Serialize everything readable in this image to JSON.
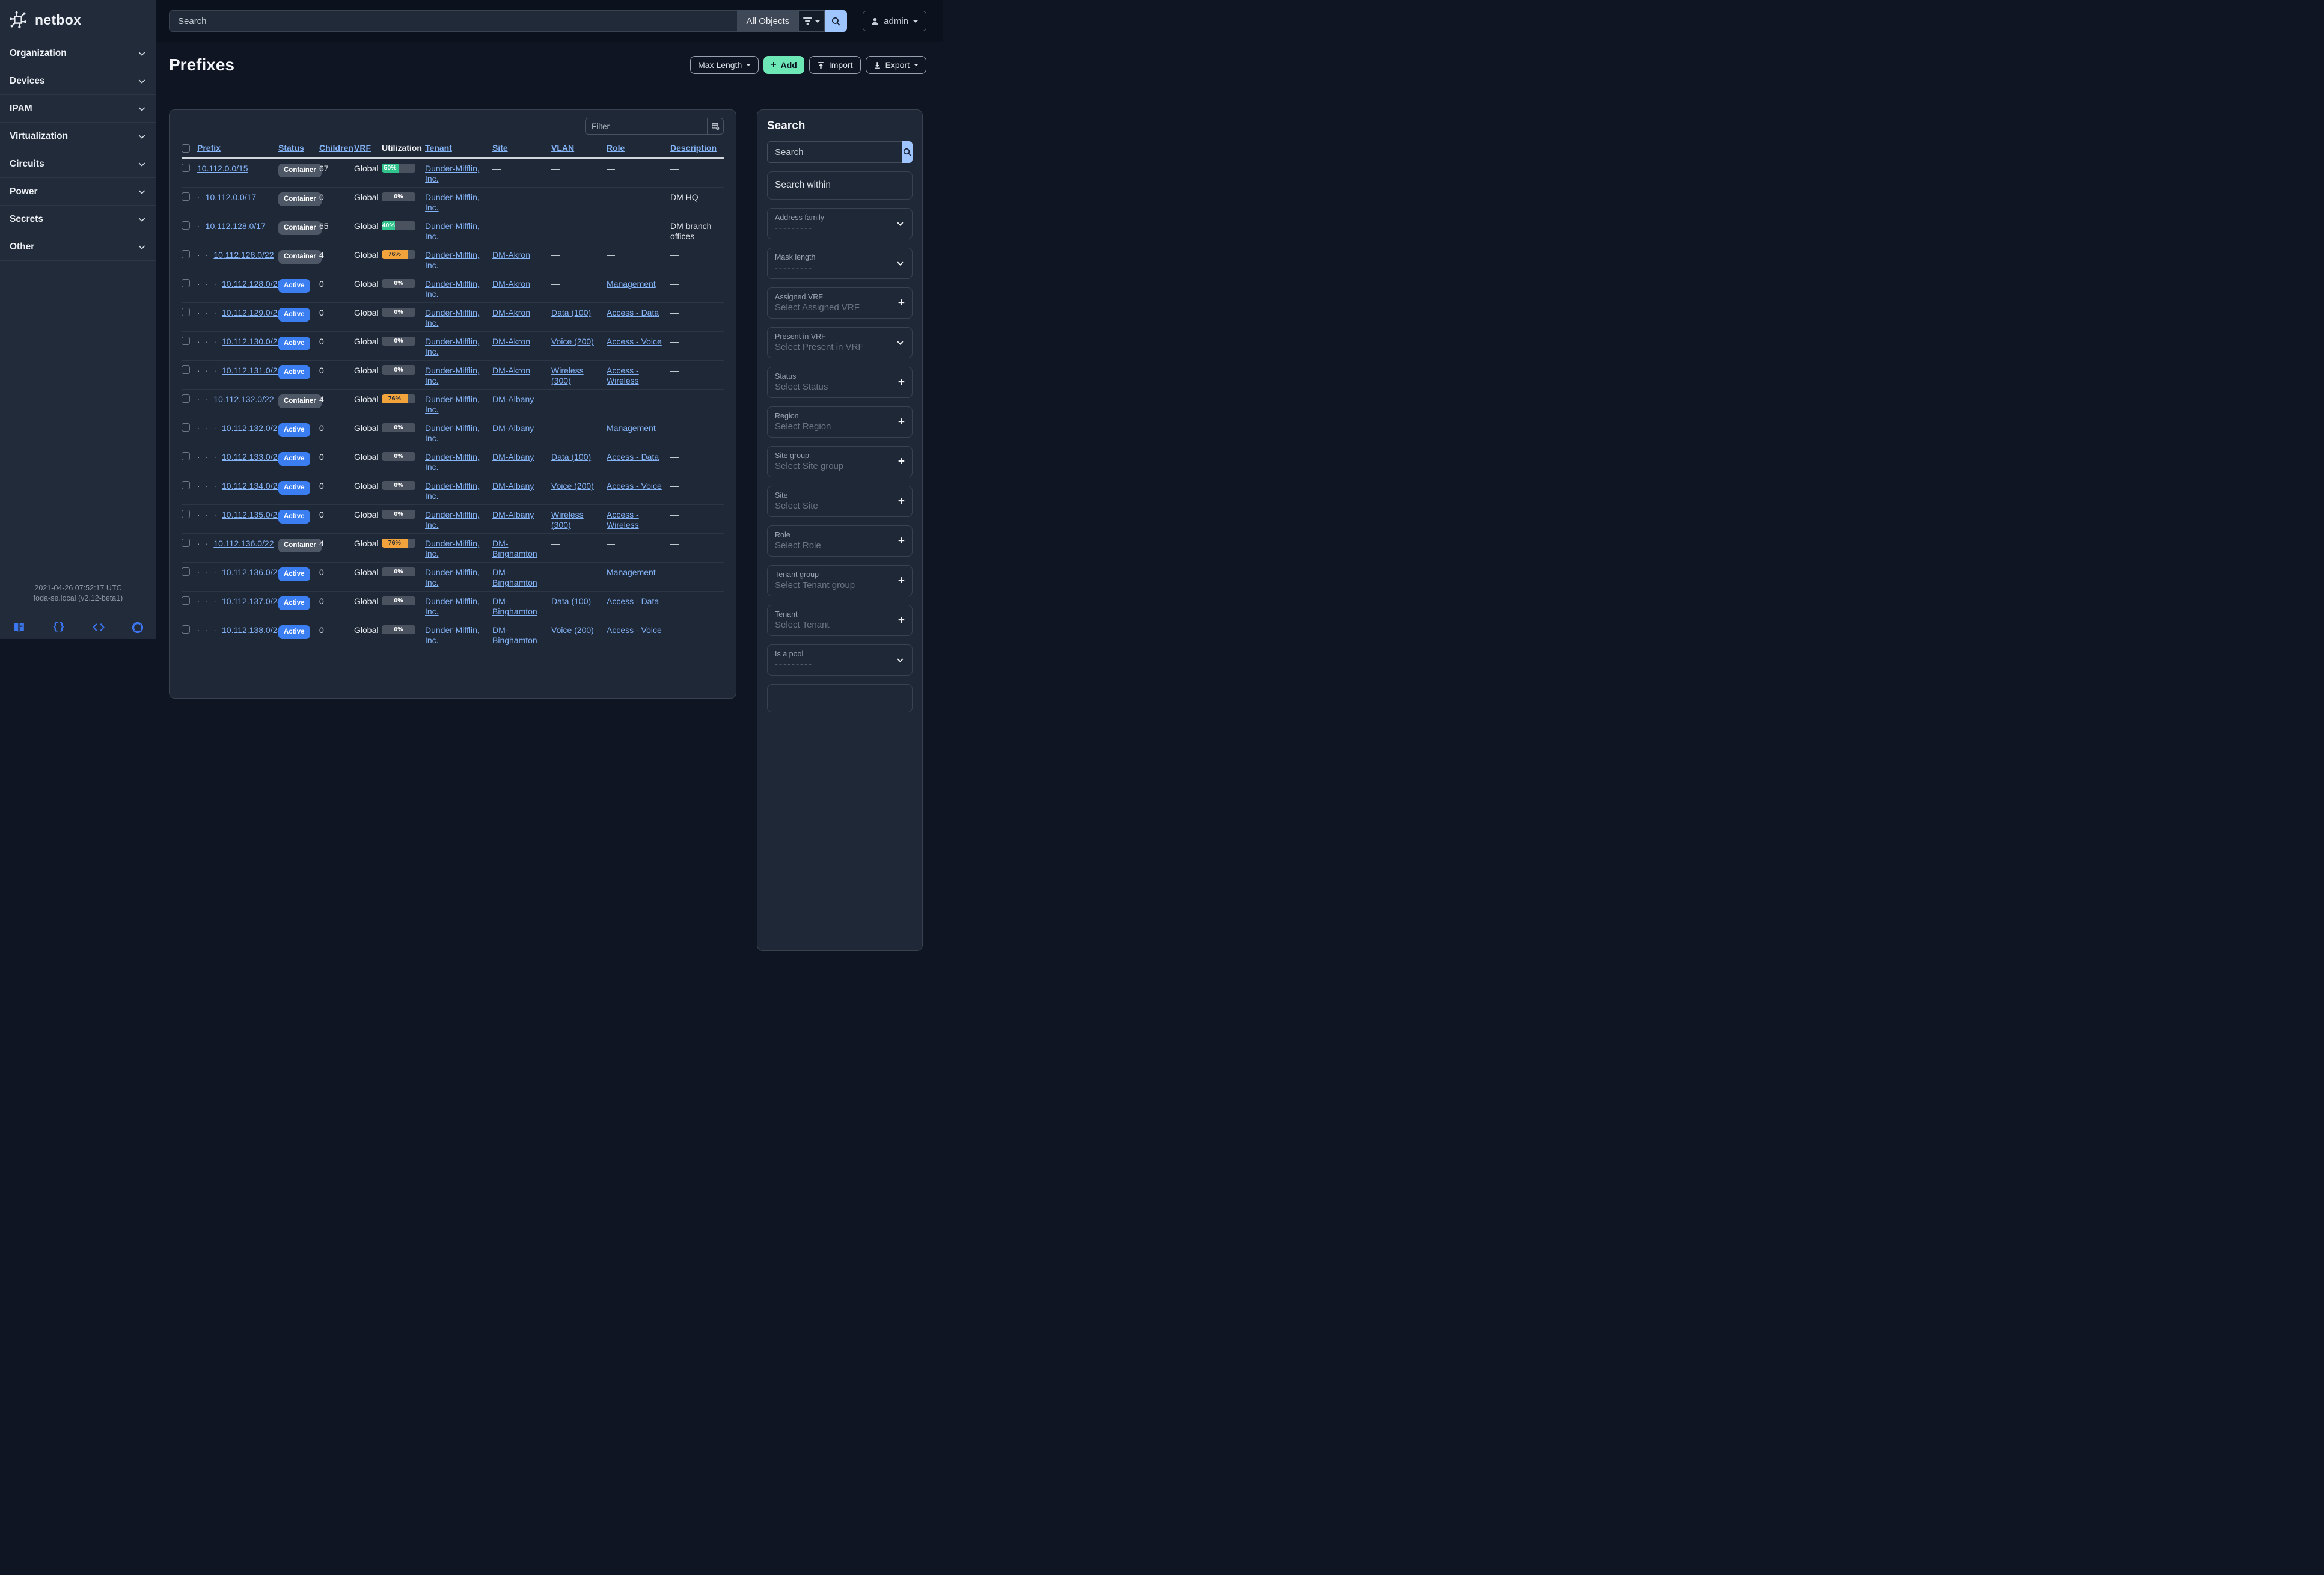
{
  "brand": {
    "name": "netbox"
  },
  "topbar": {
    "search_placeholder": "Search",
    "scope_label": "All Objects",
    "user_label": "admin"
  },
  "sidebar": {
    "items": [
      {
        "label": "Organization"
      },
      {
        "label": "Devices"
      },
      {
        "label": "IPAM"
      },
      {
        "label": "Virtualization"
      },
      {
        "label": "Circuits"
      },
      {
        "label": "Power"
      },
      {
        "label": "Secrets"
      },
      {
        "label": "Other"
      }
    ],
    "footer": {
      "timestamp": "2021-04-26 07:52:17 UTC",
      "version": "foda-se.local (v2.12-beta1)",
      "icons": [
        "book-icon",
        "braces-icon",
        "code-icon",
        "lifebuoy-icon"
      ]
    }
  },
  "page": {
    "title": "Prefixes",
    "buttons": {
      "max_length": "Max Length",
      "add": "Add",
      "import": "Import",
      "export": "Export"
    }
  },
  "colors": {
    "link": "#84b3f7",
    "green": "#31c48d",
    "orange": "#f2a33c",
    "active_badge": "#3b7ef2",
    "container_badge": "#4e5765",
    "add_button": "#6ee7b7",
    "search_button": "#9ec5fe"
  },
  "table": {
    "filter_placeholder": "Filter",
    "columns": [
      {
        "label": "",
        "type": "checkbox",
        "sortable": false
      },
      {
        "label": "Prefix",
        "sortable": true
      },
      {
        "label": "Status",
        "sortable": true
      },
      {
        "label": "Children",
        "sortable": true
      },
      {
        "label": "VRF",
        "sortable": true
      },
      {
        "label": "Utilization",
        "sortable": false
      },
      {
        "label": "Tenant",
        "sortable": true
      },
      {
        "label": "Site",
        "sortable": true
      },
      {
        "label": "VLAN",
        "sortable": true
      },
      {
        "label": "Role",
        "sortable": true
      },
      {
        "label": "Description",
        "sortable": true
      }
    ],
    "rows": [
      {
        "depth": 0,
        "prefix": "10.112.0.0/15",
        "status": "Container",
        "children": "67",
        "vrf": "Global",
        "util": 50,
        "util_color": "green",
        "tenant": "Dunder-Mifflin, Inc.",
        "site": "—",
        "vlan": "—",
        "role": "—",
        "description": "—"
      },
      {
        "depth": 1,
        "prefix": "10.112.0.0/17",
        "status": "Container",
        "children": "0",
        "vrf": "Global",
        "util": 0,
        "util_color": "none",
        "tenant": "Dunder-Mifflin, Inc.",
        "site": "—",
        "vlan": "—",
        "role": "—",
        "description": "DM HQ"
      },
      {
        "depth": 1,
        "prefix": "10.112.128.0/17",
        "status": "Container",
        "children": "65",
        "vrf": "Global",
        "util": 40,
        "util_color": "green",
        "tenant": "Dunder-Mifflin, Inc.",
        "site": "—",
        "vlan": "—",
        "role": "—",
        "description": "DM branch offices"
      },
      {
        "depth": 2,
        "prefix": "10.112.128.0/22",
        "status": "Container",
        "children": "4",
        "vrf": "Global",
        "util": 76,
        "util_color": "orange",
        "tenant": "Dunder-Mifflin, Inc.",
        "site": "DM-Akron",
        "vlan": "—",
        "role": "—",
        "description": "—"
      },
      {
        "depth": 3,
        "prefix": "10.112.128.0/28",
        "status": "Active",
        "children": "0",
        "vrf": "Global",
        "util": 0,
        "util_color": "none",
        "tenant": "Dunder-Mifflin, Inc.",
        "site": "DM-Akron",
        "vlan": "—",
        "role": "Management",
        "description": "—"
      },
      {
        "depth": 3,
        "prefix": "10.112.129.0/24",
        "status": "Active",
        "children": "0",
        "vrf": "Global",
        "util": 0,
        "util_color": "none",
        "tenant": "Dunder-Mifflin, Inc.",
        "site": "DM-Akron",
        "vlan": "Data (100)",
        "role": "Access - Data",
        "description": "—"
      },
      {
        "depth": 3,
        "prefix": "10.112.130.0/24",
        "status": "Active",
        "children": "0",
        "vrf": "Global",
        "util": 0,
        "util_color": "none",
        "tenant": "Dunder-Mifflin, Inc.",
        "site": "DM-Akron",
        "vlan": "Voice (200)",
        "role": "Access - Voice",
        "description": "—"
      },
      {
        "depth": 3,
        "prefix": "10.112.131.0/24",
        "status": "Active",
        "children": "0",
        "vrf": "Global",
        "util": 0,
        "util_color": "none",
        "tenant": "Dunder-Mifflin, Inc.",
        "site": "DM-Akron",
        "vlan": "Wireless (300)",
        "role": "Access - Wireless",
        "description": "—"
      },
      {
        "depth": 2,
        "prefix": "10.112.132.0/22",
        "status": "Container",
        "children": "4",
        "vrf": "Global",
        "util": 76,
        "util_color": "orange",
        "tenant": "Dunder-Mifflin, Inc.",
        "site": "DM-Albany",
        "vlan": "—",
        "role": "—",
        "description": "—"
      },
      {
        "depth": 3,
        "prefix": "10.112.132.0/28",
        "status": "Active",
        "children": "0",
        "vrf": "Global",
        "util": 0,
        "util_color": "none",
        "tenant": "Dunder-Mifflin, Inc.",
        "site": "DM-Albany",
        "vlan": "—",
        "role": "Management",
        "description": "—"
      },
      {
        "depth": 3,
        "prefix": "10.112.133.0/24",
        "status": "Active",
        "children": "0",
        "vrf": "Global",
        "util": 0,
        "util_color": "none",
        "tenant": "Dunder-Mifflin, Inc.",
        "site": "DM-Albany",
        "vlan": "Data (100)",
        "role": "Access - Data",
        "description": "—"
      },
      {
        "depth": 3,
        "prefix": "10.112.134.0/24",
        "status": "Active",
        "children": "0",
        "vrf": "Global",
        "util": 0,
        "util_color": "none",
        "tenant": "Dunder-Mifflin, Inc.",
        "site": "DM-Albany",
        "vlan": "Voice (200)",
        "role": "Access - Voice",
        "description": "—"
      },
      {
        "depth": 3,
        "prefix": "10.112.135.0/24",
        "status": "Active",
        "children": "0",
        "vrf": "Global",
        "util": 0,
        "util_color": "none",
        "tenant": "Dunder-Mifflin, Inc.",
        "site": "DM-Albany",
        "vlan": "Wireless (300)",
        "role": "Access - Wireless",
        "description": "—"
      },
      {
        "depth": 2,
        "prefix": "10.112.136.0/22",
        "status": "Container",
        "children": "4",
        "vrf": "Global",
        "util": 76,
        "util_color": "orange",
        "tenant": "Dunder-Mifflin, Inc.",
        "site": "DM-Binghamton",
        "vlan": "—",
        "role": "—",
        "description": "—"
      },
      {
        "depth": 3,
        "prefix": "10.112.136.0/28",
        "status": "Active",
        "children": "0",
        "vrf": "Global",
        "util": 0,
        "util_color": "none",
        "tenant": "Dunder-Mifflin, Inc.",
        "site": "DM-Binghamton",
        "vlan": "—",
        "role": "Management",
        "description": "—"
      },
      {
        "depth": 3,
        "prefix": "10.112.137.0/24",
        "status": "Active",
        "children": "0",
        "vrf": "Global",
        "util": 0,
        "util_color": "none",
        "tenant": "Dunder-Mifflin, Inc.",
        "site": "DM-Binghamton",
        "vlan": "Data (100)",
        "role": "Access - Data",
        "description": "—"
      },
      {
        "depth": 3,
        "prefix": "10.112.138.0/24",
        "status": "Active",
        "children": "0",
        "vrf": "Global",
        "util": 0,
        "util_color": "none",
        "tenant": "Dunder-Mifflin, Inc.",
        "site": "DM-Binghamton",
        "vlan": "Voice (200)",
        "role": "Access - Voice",
        "description": "—"
      }
    ]
  },
  "filters": {
    "title": "Search",
    "search_placeholder": "Search",
    "search_within_placeholder": "Search within",
    "fields": [
      {
        "label": "Address family",
        "placeholder": "---------",
        "icon": "chevron",
        "dashes": true
      },
      {
        "label": "Mask length",
        "placeholder": "---------",
        "icon": "chevron",
        "dashes": true
      },
      {
        "label": "Assigned VRF",
        "placeholder": "Select Assigned VRF",
        "icon": "plus"
      },
      {
        "label": "Present in VRF",
        "placeholder": "Select Present in VRF",
        "icon": "chevron"
      },
      {
        "label": "Status",
        "placeholder": "Select Status",
        "icon": "plus"
      },
      {
        "label": "Region",
        "placeholder": "Select Region",
        "icon": "plus"
      },
      {
        "label": "Site group",
        "placeholder": "Select Site group",
        "icon": "plus"
      },
      {
        "label": "Site",
        "placeholder": "Select Site",
        "icon": "plus"
      },
      {
        "label": "Role",
        "placeholder": "Select Role",
        "icon": "plus"
      },
      {
        "label": "Tenant group",
        "placeholder": "Select Tenant group",
        "icon": "plus"
      },
      {
        "label": "Tenant",
        "placeholder": "Select Tenant",
        "icon": "plus"
      },
      {
        "label": "Is a pool",
        "placeholder": "---------",
        "icon": "chevron",
        "dashes": true
      }
    ]
  }
}
